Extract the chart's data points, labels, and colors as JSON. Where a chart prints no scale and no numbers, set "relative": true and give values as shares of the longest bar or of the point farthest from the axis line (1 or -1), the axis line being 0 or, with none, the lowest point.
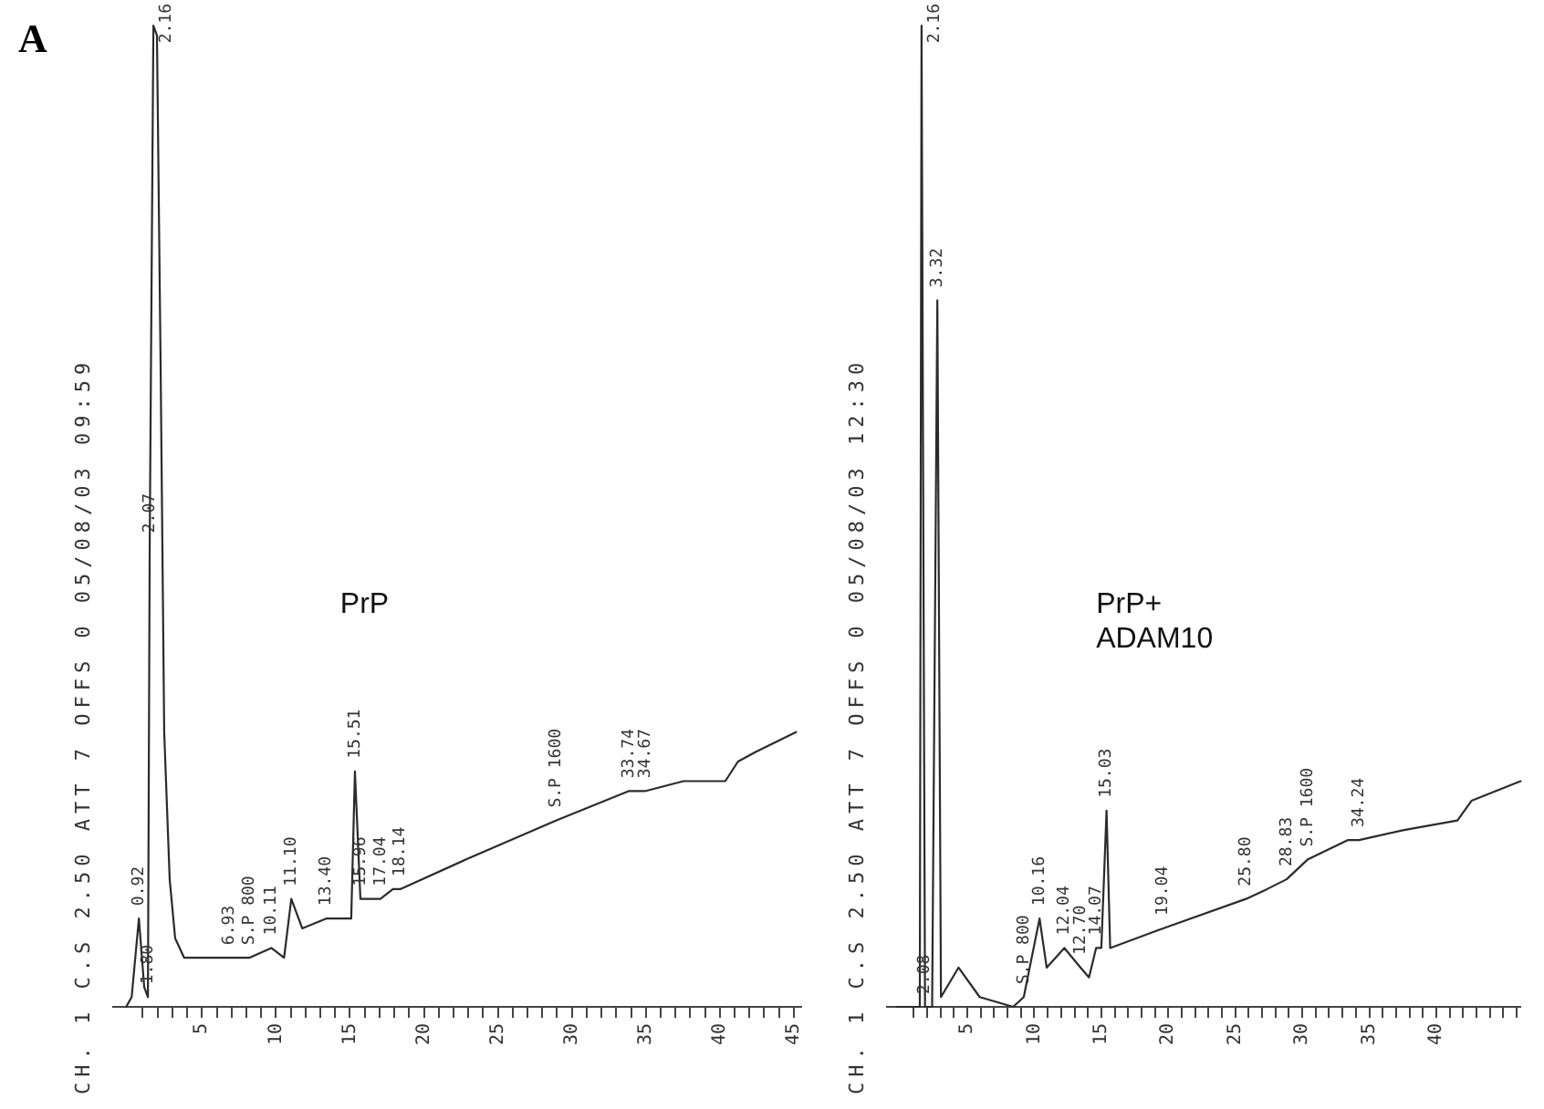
{
  "chart_data": [
    {
      "type": "line",
      "title": "PrP",
      "subtitle": "CH. 1 C.S 2.50 ATT 7 OFFS 0 05/08/03 09:59",
      "relative": true,
      "color": "#2b2b2b",
      "x": [
        -0.12,
        0.25,
        0.74,
        1.1,
        1.35,
        1.47,
        1.72,
        1.96,
        2.21,
        2.45,
        2.82,
        3.19,
        3.8,
        4.42,
        6.87,
        8.2,
        9.69,
        10.55,
        11.04,
        11.78,
        13.4,
        15.09,
        15.34,
        15.71,
        17.06,
        17.91,
        18.4,
        22.82,
        28.96,
        33.87,
        35.0,
        37.55,
        40.37,
        41.23,
        42.45,
        45.15
      ],
      "values": [
        0,
        0.01,
        0.09,
        0.02,
        0.01,
        0.47,
        1,
        0.99,
        0.65,
        0.28,
        0.13,
        0.07,
        0.05,
        0.05,
        0.05,
        0.05,
        0.06,
        0.05,
        0.11,
        0.08,
        0.09,
        0.09,
        0.24,
        0.11,
        0.11,
        0.12,
        0.12,
        0.15,
        0.19,
        0.22,
        0.22,
        0.23,
        0.23,
        0.25,
        0.26,
        0.28
      ],
      "xlim": [
        -1,
        45.5
      ],
      "xticks": [
        {
          "value": 1,
          "label": null
        },
        {
          "value": 2,
          "label": null
        },
        {
          "value": 3,
          "label": null
        },
        {
          "value": 4,
          "label": null
        },
        5,
        {
          "value": 6,
          "label": null
        },
        {
          "value": 7,
          "label": null
        },
        {
          "value": 8,
          "label": null
        },
        {
          "value": 9,
          "label": null
        },
        10,
        {
          "value": 11,
          "label": null
        },
        {
          "value": 12,
          "label": null
        },
        {
          "value": 13,
          "label": null
        },
        {
          "value": 14,
          "label": null
        },
        15,
        {
          "value": 16,
          "label": null
        },
        {
          "value": 17,
          "label": null
        },
        {
          "value": 18,
          "label": null
        },
        {
          "value": 19,
          "label": null
        },
        20,
        {
          "value": 21,
          "label": null
        },
        {
          "value": 22,
          "label": null
        },
        {
          "value": 23,
          "label": null
        },
        {
          "value": 24,
          "label": null
        },
        25,
        {
          "value": 26,
          "label": null
        },
        {
          "value": 27,
          "label": null
        },
        {
          "value": 28,
          "label": null
        },
        {
          "value": 29,
          "label": null
        },
        30,
        {
          "value": 31,
          "label": null
        },
        {
          "value": 32,
          "label": null
        },
        {
          "value": 33,
          "label": null
        },
        {
          "value": 34,
          "label": null
        },
        35,
        {
          "value": 36,
          "label": null
        },
        {
          "value": 37,
          "label": null
        },
        {
          "value": 38,
          "label": null
        },
        {
          "value": 39,
          "label": null
        },
        40,
        {
          "value": 41,
          "label": null
        },
        {
          "value": 42,
          "label": null
        },
        {
          "value": 43,
          "label": null
        },
        {
          "value": 44,
          "label": null
        },
        45
      ],
      "annotations": [
        "A",
        {
          "text": "0.92",
          "x": 0.74,
          "y": 0.09
        },
        {
          "text": "1.80",
          "x": 1.35,
          "y": 0.01
        },
        {
          "text": "2.07",
          "x": 1.47,
          "y": 0.47
        },
        {
          "text": "2.16",
          "x": 1.72,
          "y": 1
        },
        {
          "text": "6.93",
          "x": 6.87,
          "y": 0.05
        },
        {
          "text": "S.P 800",
          "x": 8.2,
          "y": 0.05
        },
        {
          "text": "10.11",
          "x": 9.69,
          "y": 0.06
        },
        {
          "text": "11.10",
          "x": 11.04,
          "y": 0.11
        },
        {
          "text": "13.40",
          "x": 13.4,
          "y": 0.09
        },
        {
          "text": "15.51",
          "x": 15.34,
          "y": 0.24
        },
        {
          "text": "15.96",
          "x": 15.71,
          "y": 0.11
        },
        {
          "text": "17.04",
          "x": 17.06,
          "y": 0.11
        },
        {
          "text": "18.14",
          "x": 18.4,
          "y": 0.12
        },
        {
          "text": "33.74",
          "x": 33.87,
          "y": 0.22
        },
        {
          "text": "34.67",
          "x": 35.0,
          "y": 0.22
        },
        {
          "text": "S.P 1600",
          "x": 28.96,
          "y": 0.19
        }
      ]
    },
    {
      "type": "line",
      "title": "PrP+\nADAM10",
      "subtitle": "CH. 1 C.S 2.50 ATT 7 OFFS 0 05/08/03 12:30",
      "relative": true,
      "color": "#2b2b2b",
      "x": [
        -0.26,
        1.45,
        1.58,
        1.84,
        2.37,
        2.76,
        3.03,
        4.34,
        5.92,
        8.42,
        9.21,
        10.39,
        10.92,
        12.24,
        13.45,
        14.08,
        14.61,
        15,
        15.39,
        15.66,
        19.61,
        25.8,
        27.37,
        28.83,
        30.39,
        33.42,
        34.24,
        37.5,
        41.58,
        42.63,
        46.3
      ],
      "values": [
        0,
        0,
        1,
        0,
        0,
        0.72,
        0.01,
        0.04,
        0.01,
        0,
        0.01,
        0.09,
        0.04,
        0.06,
        0.04,
        0.03,
        0.06,
        0.06,
        0.2,
        0.06,
        0.08,
        0.11,
        0.12,
        0.13,
        0.15,
        0.17,
        0.17,
        0.18,
        0.19,
        0.21,
        0.23
      ],
      "xlim": [
        -1,
        46.3
      ],
      "xticks": [
        {
          "value": 1,
          "label": null
        },
        {
          "value": 2,
          "label": null
        },
        {
          "value": 3,
          "label": null
        },
        {
          "value": 4,
          "label": null
        },
        5,
        {
          "value": 6,
          "label": null
        },
        {
          "value": 7,
          "label": null
        },
        {
          "value": 8,
          "label": null
        },
        {
          "value": 9,
          "label": null
        },
        10,
        {
          "value": 11,
          "label": null
        },
        {
          "value": 12,
          "label": null
        },
        {
          "value": 13,
          "label": null
        },
        {
          "value": 14,
          "label": null
        },
        15,
        {
          "value": 16,
          "label": null
        },
        {
          "value": 17,
          "label": null
        },
        {
          "value": 18,
          "label": null
        },
        {
          "value": 19,
          "label": null
        },
        20,
        {
          "value": 21,
          "label": null
        },
        {
          "value": 22,
          "label": null
        },
        {
          "value": 23,
          "label": null
        },
        {
          "value": 24,
          "label": null
        },
        25,
        {
          "value": 26,
          "label": null
        },
        {
          "value": 27,
          "label": null
        },
        {
          "value": 28,
          "label": null
        },
        {
          "value": 29,
          "label": null
        },
        30,
        {
          "value": 31,
          "label": null
        },
        {
          "value": 32,
          "label": null
        },
        {
          "value": 33,
          "label": null
        },
        {
          "value": 34,
          "label": null
        },
        35,
        {
          "value": 36,
          "label": null
        },
        {
          "value": 37,
          "label": null
        },
        {
          "value": 38,
          "label": null
        },
        {
          "value": 39,
          "label": null
        },
        40,
        {
          "value": 41,
          "label": null
        },
        {
          "value": 42,
          "label": null
        },
        {
          "value": 43,
          "label": null
        },
        {
          "value": 44,
          "label": null
        },
        {
          "value": 45,
          "label": null
        },
        {
          "value": 46,
          "label": null
        }
      ],
      "annotations": [
        {
          "text": "2.16",
          "x": 1.58,
          "y": 1
        },
        {
          "text": "3.32",
          "x": 2.76,
          "y": 0.72
        },
        {
          "text": "2.08",
          "x": 1.84,
          "y": 0
        },
        {
          "text": "S.P 800",
          "x": 9.21,
          "y": 0.01
        },
        {
          "text": "10.16",
          "x": 10.39,
          "y": 0.09
        },
        {
          "text": "12.04",
          "x": 12.24,
          "y": 0.06
        },
        {
          "text": "12.70",
          "x": 13.45,
          "y": 0.04
        },
        {
          "text": "14.07",
          "x": 14.61,
          "y": 0.06
        },
        {
          "text": "15.03",
          "x": 15.39,
          "y": 0.2
        },
        {
          "text": "19.04",
          "x": 19.61,
          "y": 0.08
        },
        {
          "text": "25.80",
          "x": 25.8,
          "y": 0.11
        },
        {
          "text": "28.83",
          "x": 28.83,
          "y": 0.13
        },
        {
          "text": "34.24",
          "x": 34.24,
          "y": 0.17
        },
        {
          "text": "S.P 1600",
          "x": 30.39,
          "y": 0.15
        }
      ]
    }
  ]
}
